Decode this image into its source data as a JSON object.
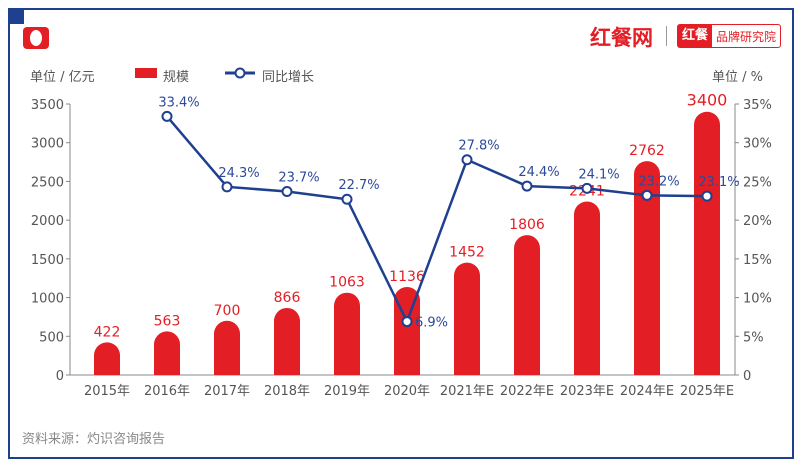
{
  "branding": {
    "site": "红餐网",
    "badge_main": "红餐",
    "badge_sub": "品牌研究院"
  },
  "source": "资料来源：灼识咨询报告",
  "chart_data": {
    "type": "bar+line",
    "left_unit": "单位 / 亿元",
    "right_unit": "单位 / %",
    "categories": [
      "2015年",
      "2016年",
      "2017年",
      "2018年",
      "2019年",
      "2020年",
      "2021年E",
      "2022年E",
      "2023年E",
      "2024年E",
      "2025年E"
    ],
    "series": [
      {
        "name": "规模",
        "type": "bar",
        "color": "#e31e24",
        "values": [
          422,
          563,
          700,
          866,
          1063,
          1136,
          1452,
          1806,
          2241,
          2762,
          3400
        ]
      },
      {
        "name": "同比增长",
        "type": "line",
        "color": "#1f3f8f",
        "values": [
          null,
          33.4,
          24.3,
          23.7,
          22.7,
          6.9,
          27.8,
          24.4,
          24.1,
          23.2,
          23.1
        ]
      }
    ],
    "y_left": {
      "range": [
        0,
        3500
      ],
      "ticks": [
        0,
        500,
        1000,
        1500,
        2000,
        2500,
        3000,
        3500
      ]
    },
    "y_right": {
      "range": [
        0,
        35
      ],
      "ticks": [
        "0",
        "5%",
        "10%",
        "15%",
        "20%",
        "25%",
        "30%",
        "35%"
      ]
    },
    "grid": false,
    "legend": "top-left"
  }
}
